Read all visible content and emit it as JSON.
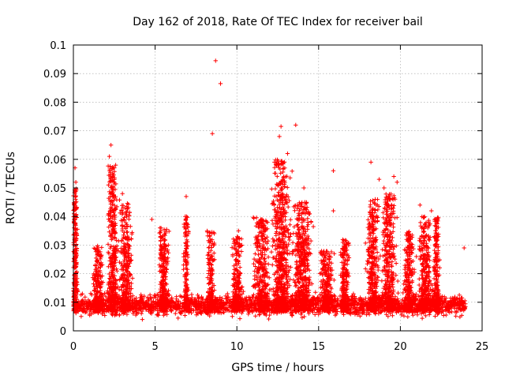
{
  "chart_data": {
    "type": "scatter",
    "title": "Day 162 of 2018, Rate Of TEC Index for receiver bail",
    "xlabel": "GPS time / hours",
    "ylabel": "ROTI / TECUs",
    "xlim": [
      0,
      25
    ],
    "ylim": [
      0,
      0.1
    ],
    "grid": true,
    "marker": "+",
    "color": "#ff0000",
    "x_ticks": [
      0,
      5,
      10,
      15,
      20,
      25
    ],
    "x_tick_labels": [
      "0",
      "5",
      "10",
      "15",
      "20",
      "25"
    ],
    "y_ticks": [
      0,
      0.01,
      0.02,
      0.03,
      0.04,
      0.05,
      0.06,
      0.07,
      0.08,
      0.09,
      0.1
    ],
    "y_tick_labels": [
      "0",
      "0.01",
      "0.02",
      "0.03",
      "0.04",
      "0.05",
      "0.06",
      "0.07",
      "0.08",
      "0.09",
      "0.1"
    ],
    "series": [
      {
        "name": "ROTI",
        "notable_points": [
          {
            "x": 0.1,
            "y": 0.057
          },
          {
            "x": 0.15,
            "y": 0.052
          },
          {
            "x": 0.1,
            "y": 0.039
          },
          {
            "x": 2.3,
            "y": 0.065
          },
          {
            "x": 2.2,
            "y": 0.061
          },
          {
            "x": 2.4,
            "y": 0.055
          },
          {
            "x": 3.0,
            "y": 0.048
          },
          {
            "x": 4.8,
            "y": 0.039
          },
          {
            "x": 5.3,
            "y": 0.036
          },
          {
            "x": 6.9,
            "y": 0.047
          },
          {
            "x": 8.5,
            "y": 0.069
          },
          {
            "x": 8.7,
            "y": 0.0945
          },
          {
            "x": 9.0,
            "y": 0.0865
          },
          {
            "x": 10.1,
            "y": 0.035
          },
          {
            "x": 12.3,
            "y": 0.059
          },
          {
            "x": 12.6,
            "y": 0.068
          },
          {
            "x": 12.7,
            "y": 0.0715
          },
          {
            "x": 13.1,
            "y": 0.062
          },
          {
            "x": 13.6,
            "y": 0.072
          },
          {
            "x": 14.1,
            "y": 0.05
          },
          {
            "x": 15.9,
            "y": 0.056
          },
          {
            "x": 15.9,
            "y": 0.042
          },
          {
            "x": 18.2,
            "y": 0.059
          },
          {
            "x": 18.7,
            "y": 0.053
          },
          {
            "x": 19.0,
            "y": 0.05
          },
          {
            "x": 19.6,
            "y": 0.054
          },
          {
            "x": 19.8,
            "y": 0.052
          },
          {
            "x": 21.2,
            "y": 0.044
          },
          {
            "x": 21.9,
            "y": 0.042
          },
          {
            "x": 23.9,
            "y": 0.029
          }
        ],
        "activity_bursts": [
          {
            "center": 0.1,
            "width": 0.25,
            "peak": 0.05,
            "weight": 1.0
          },
          {
            "center": 1.5,
            "width": 0.5,
            "peak": 0.03,
            "weight": 0.8
          },
          {
            "center": 2.4,
            "width": 0.5,
            "peak": 0.058,
            "weight": 1.4
          },
          {
            "center": 3.2,
            "width": 0.6,
            "peak": 0.045,
            "weight": 1.2
          },
          {
            "center": 5.5,
            "width": 0.5,
            "peak": 0.036,
            "weight": 1.0
          },
          {
            "center": 6.9,
            "width": 0.25,
            "peak": 0.04,
            "weight": 0.6
          },
          {
            "center": 8.4,
            "width": 0.4,
            "peak": 0.035,
            "weight": 0.7
          },
          {
            "center": 10.0,
            "width": 0.5,
            "peak": 0.033,
            "weight": 0.9
          },
          {
            "center": 11.5,
            "width": 0.8,
            "peak": 0.04,
            "weight": 1.3
          },
          {
            "center": 12.7,
            "width": 0.9,
            "peak": 0.06,
            "weight": 2.2
          },
          {
            "center": 14.0,
            "width": 0.9,
            "peak": 0.045,
            "weight": 1.8
          },
          {
            "center": 15.5,
            "width": 0.6,
            "peak": 0.028,
            "weight": 1.0
          },
          {
            "center": 16.6,
            "width": 0.4,
            "peak": 0.032,
            "weight": 0.8
          },
          {
            "center": 18.3,
            "width": 0.6,
            "peak": 0.046,
            "weight": 1.3
          },
          {
            "center": 19.3,
            "width": 0.7,
            "peak": 0.048,
            "weight": 1.4
          },
          {
            "center": 20.5,
            "width": 0.5,
            "peak": 0.035,
            "weight": 0.9
          },
          {
            "center": 21.5,
            "width": 0.6,
            "peak": 0.04,
            "weight": 1.2
          },
          {
            "center": 22.2,
            "width": 0.3,
            "peak": 0.04,
            "weight": 0.8
          }
        ],
        "baseline": {
          "x_start": 0.0,
          "x_end": 24.0,
          "typical": 0.009,
          "spread": 0.004
        }
      }
    ]
  }
}
